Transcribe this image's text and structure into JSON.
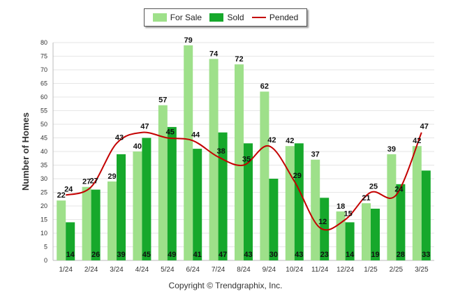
{
  "colors": {
    "for_sale": "#9ee08a",
    "sold": "#16a82b",
    "pended": "#c40000",
    "grid": "#e6e6e6",
    "axis_text": "#333333"
  },
  "legend": {
    "for_sale": "For Sale",
    "sold": "Sold",
    "pended": "Pended"
  },
  "copyright": "Copyright © Trendgraphix, Inc.",
  "chart_data": {
    "type": "bar",
    "ylabel": "Number of Homes",
    "xlabel": "",
    "ylim": [
      0,
      80
    ],
    "yticks": [
      0,
      5,
      10,
      15,
      20,
      25,
      30,
      35,
      40,
      45,
      50,
      55,
      60,
      65,
      70,
      75,
      80
    ],
    "grid": true,
    "legend_position": "top-center",
    "categories": [
      "1/24",
      "2/24",
      "3/24",
      "4/24",
      "5/24",
      "6/24",
      "7/24",
      "8/24",
      "9/24",
      "10/24",
      "11/24",
      "12/24",
      "1/25",
      "2/25",
      "3/25"
    ],
    "series": [
      {
        "name": "For Sale",
        "type": "bar",
        "values": [
          22,
          27,
          29,
          40,
          57,
          79,
          74,
          72,
          62,
          42,
          37,
          18,
          21,
          39,
          42
        ]
      },
      {
        "name": "Sold",
        "type": "bar",
        "values": [
          14,
          26,
          39,
          45,
          49,
          41,
          47,
          43,
          30,
          43,
          23,
          14,
          19,
          28,
          33
        ]
      },
      {
        "name": "Pended",
        "type": "line",
        "values": [
          24,
          27,
          43,
          47,
          45,
          44,
          38,
          35,
          42,
          29,
          12,
          15,
          25,
          24,
          47
        ]
      }
    ]
  }
}
